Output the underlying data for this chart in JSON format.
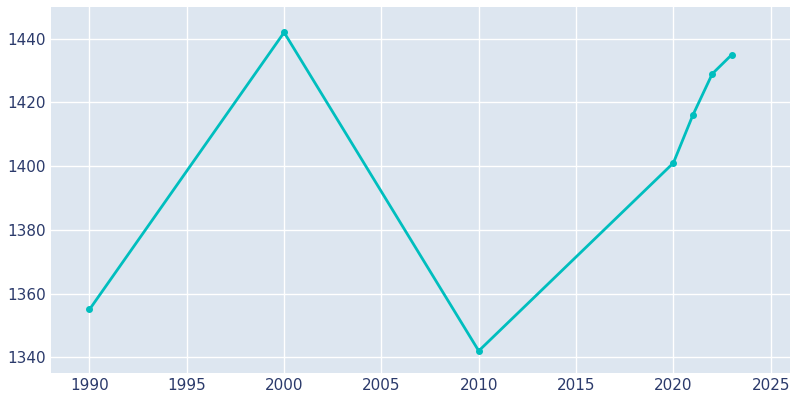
{
  "years": [
    1990,
    2000,
    2010,
    2020,
    2021,
    2022,
    2023
  ],
  "population": [
    1355,
    1442,
    1342,
    1401,
    1416,
    1429,
    1435
  ],
  "line_color": "#00BEBE",
  "marker": "o",
  "marker_size": 4,
  "line_width": 2,
  "background_color": "#FFFFFF",
  "axes_color": "#DDE6F0",
  "grid_color": "#FFFFFF",
  "tick_color": "#2B3A6B",
  "xlim": [
    1988,
    2026
  ],
  "ylim": [
    1335,
    1450
  ],
  "xticks": [
    1990,
    1995,
    2000,
    2005,
    2010,
    2015,
    2020,
    2025
  ],
  "yticks": [
    1340,
    1360,
    1380,
    1400,
    1420,
    1440
  ],
  "xlabel": "",
  "ylabel": "",
  "title": ""
}
